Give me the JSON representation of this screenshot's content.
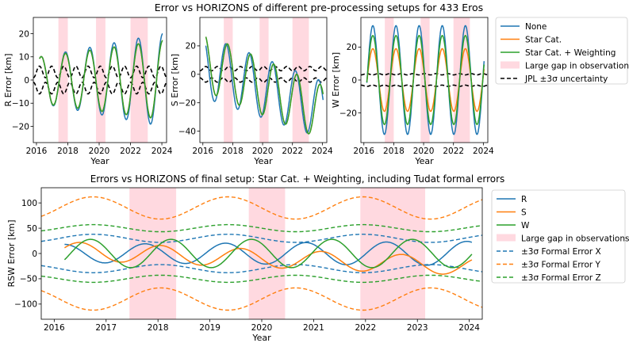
{
  "colors": {
    "none": "#1f77b4",
    "star_cat": "#ff7f0e",
    "weighting": "#2ca02c",
    "gap": "#ffc0cb",
    "jpl": "#000000"
  },
  "chart_data": [
    {
      "id": "r",
      "type": "line",
      "title": "Error vs HORIZONS of different pre-processing setups for 433 Eros",
      "xlabel": "Year",
      "ylabel": "R Error [km]",
      "xlim": [
        2015.8,
        2024.3
      ],
      "ylim": [
        -27,
        27
      ],
      "xticks": [
        2016,
        2018,
        2020,
        2022,
        2024
      ],
      "yticks": [
        -20,
        -10,
        0,
        10,
        20
      ],
      "gaps": [
        [
          2017.4,
          2018.0
        ],
        [
          2019.8,
          2020.4
        ],
        [
          2022.0,
          2023.1
        ]
      ],
      "series": [
        {
          "name": "None",
          "key": "none",
          "phase": 2016.3,
          "amp_start": 10,
          "amp_end": 20,
          "offset": 0
        },
        {
          "name": "Star Cat.",
          "key": "star_cat",
          "phase": 2016.3,
          "amp_start": 10,
          "amp_end": 17,
          "offset": 0
        },
        {
          "name": "Star Cat. + Weighting",
          "key": "weighting",
          "phase": 2016.3,
          "amp_start": 10,
          "amp_end": 17,
          "offset": 0
        }
      ],
      "jpl_band": {
        "center": 0,
        "base": 3.5,
        "wobble": 2.5
      }
    },
    {
      "id": "s",
      "type": "line",
      "xlabel": "Year",
      "ylabel": "S Error [km]",
      "xlim": [
        2015.8,
        2024.3
      ],
      "ylim": [
        -48,
        40
      ],
      "xticks": [
        2016,
        2018,
        2020,
        2022,
        2024
      ],
      "yticks": [
        -40,
        -20,
        0,
        20
      ],
      "gaps": [
        [
          2017.4,
          2018.0
        ],
        [
          2019.8,
          2020.4
        ],
        [
          2022.0,
          2023.1
        ]
      ],
      "series": [
        {
          "name": "None",
          "key": "none",
          "phase": 2016.0,
          "amp_start": 22,
          "amp_end": 20,
          "offset_start": 5,
          "offset_end": -25
        },
        {
          "name": "Star Cat.",
          "key": "star_cat",
          "phase": 2016.1,
          "amp_start": 20,
          "amp_end": 19,
          "offset_start": 8,
          "offset_end": -27
        },
        {
          "name": "Star Cat. + Weighting",
          "key": "weighting",
          "phase": 2016.1,
          "amp_start": 20,
          "amp_end": 19,
          "offset_start": 8,
          "offset_end": -27
        }
      ],
      "jpl_band": {
        "center": 0,
        "base": 4,
        "wobble": 1.5
      }
    },
    {
      "id": "w",
      "type": "line",
      "xlabel": "Year",
      "ylabel": "W Error [km]",
      "xlim": [
        2015.8,
        2024.3
      ],
      "ylim": [
        -38,
        38
      ],
      "xticks": [
        2016,
        2018,
        2020,
        2022,
        2024
      ],
      "yticks": [
        -20,
        0,
        20
      ],
      "gaps": [
        [
          2017.4,
          2018.0
        ],
        [
          2019.8,
          2020.4
        ],
        [
          2022.0,
          2023.1
        ]
      ],
      "series": [
        {
          "name": "None",
          "key": "none",
          "phase": 2016.6,
          "amp_start": 33,
          "amp_end": 33,
          "offset": 0
        },
        {
          "name": "Star Cat.",
          "key": "star_cat",
          "phase": 2016.6,
          "amp_start": 19,
          "amp_end": 19,
          "offset": 0
        },
        {
          "name": "Star Cat. + Weighting",
          "key": "weighting",
          "phase": 2016.6,
          "amp_start": 27,
          "amp_end": 27,
          "offset": 0
        }
      ],
      "jpl_band": {
        "center": 0,
        "base": 3.5,
        "wobble": 0.4
      }
    },
    {
      "id": "rsw",
      "type": "line",
      "title": "Errors vs HORIZONS of final setup: Star Cat. + Weighting, including Tudat formal errors",
      "xlabel": "Year",
      "ylabel": "RSW Error [km]",
      "xlim": [
        2015.75,
        2024.25
      ],
      "ylim": [
        -130,
        130
      ],
      "xticks": [
        2016,
        2017,
        2018,
        2019,
        2020,
        2021,
        2022,
        2023,
        2024
      ],
      "yticks": [
        -100,
        -50,
        0,
        50,
        100
      ],
      "gaps": [
        [
          2017.45,
          2018.35
        ],
        [
          2019.75,
          2020.45
        ],
        [
          2021.9,
          2023.15
        ]
      ],
      "series": [
        {
          "name": "R",
          "key": "none",
          "phase": 2016.2,
          "amp_start": 18,
          "amp_end": 24,
          "offset": 0
        },
        {
          "name": "S",
          "key": "star_cat",
          "phase": 2016.5,
          "amp_start": 18,
          "amp_end": 18,
          "offset_start": 5,
          "offset_end": -25
        },
        {
          "name": "W",
          "key": "weighting",
          "phase": 2016.7,
          "amp_start": 28,
          "amp_end": 28,
          "offset": 0
        }
      ],
      "formal": [
        {
          "name": "±3σ Formal Error X",
          "key": "none",
          "base": 30,
          "amp": 8
        },
        {
          "name": "±3σ Formal Error Y",
          "key": "star_cat",
          "base": 90,
          "amp": 22
        },
        {
          "name": "±3σ Formal Error Z",
          "key": "weighting",
          "base": 50,
          "amp": 7
        }
      ]
    }
  ],
  "legends": {
    "top": [
      "None",
      "Star Cat.",
      "Star Cat. + Weighting",
      "Large gap in observations",
      "JPL ±3σ uncertainty"
    ],
    "bottom": [
      "R",
      "S",
      "W",
      "Large gap in observations",
      "±3σ Formal Error X",
      "±3σ Formal Error Y",
      "±3σ Formal Error Z"
    ]
  }
}
